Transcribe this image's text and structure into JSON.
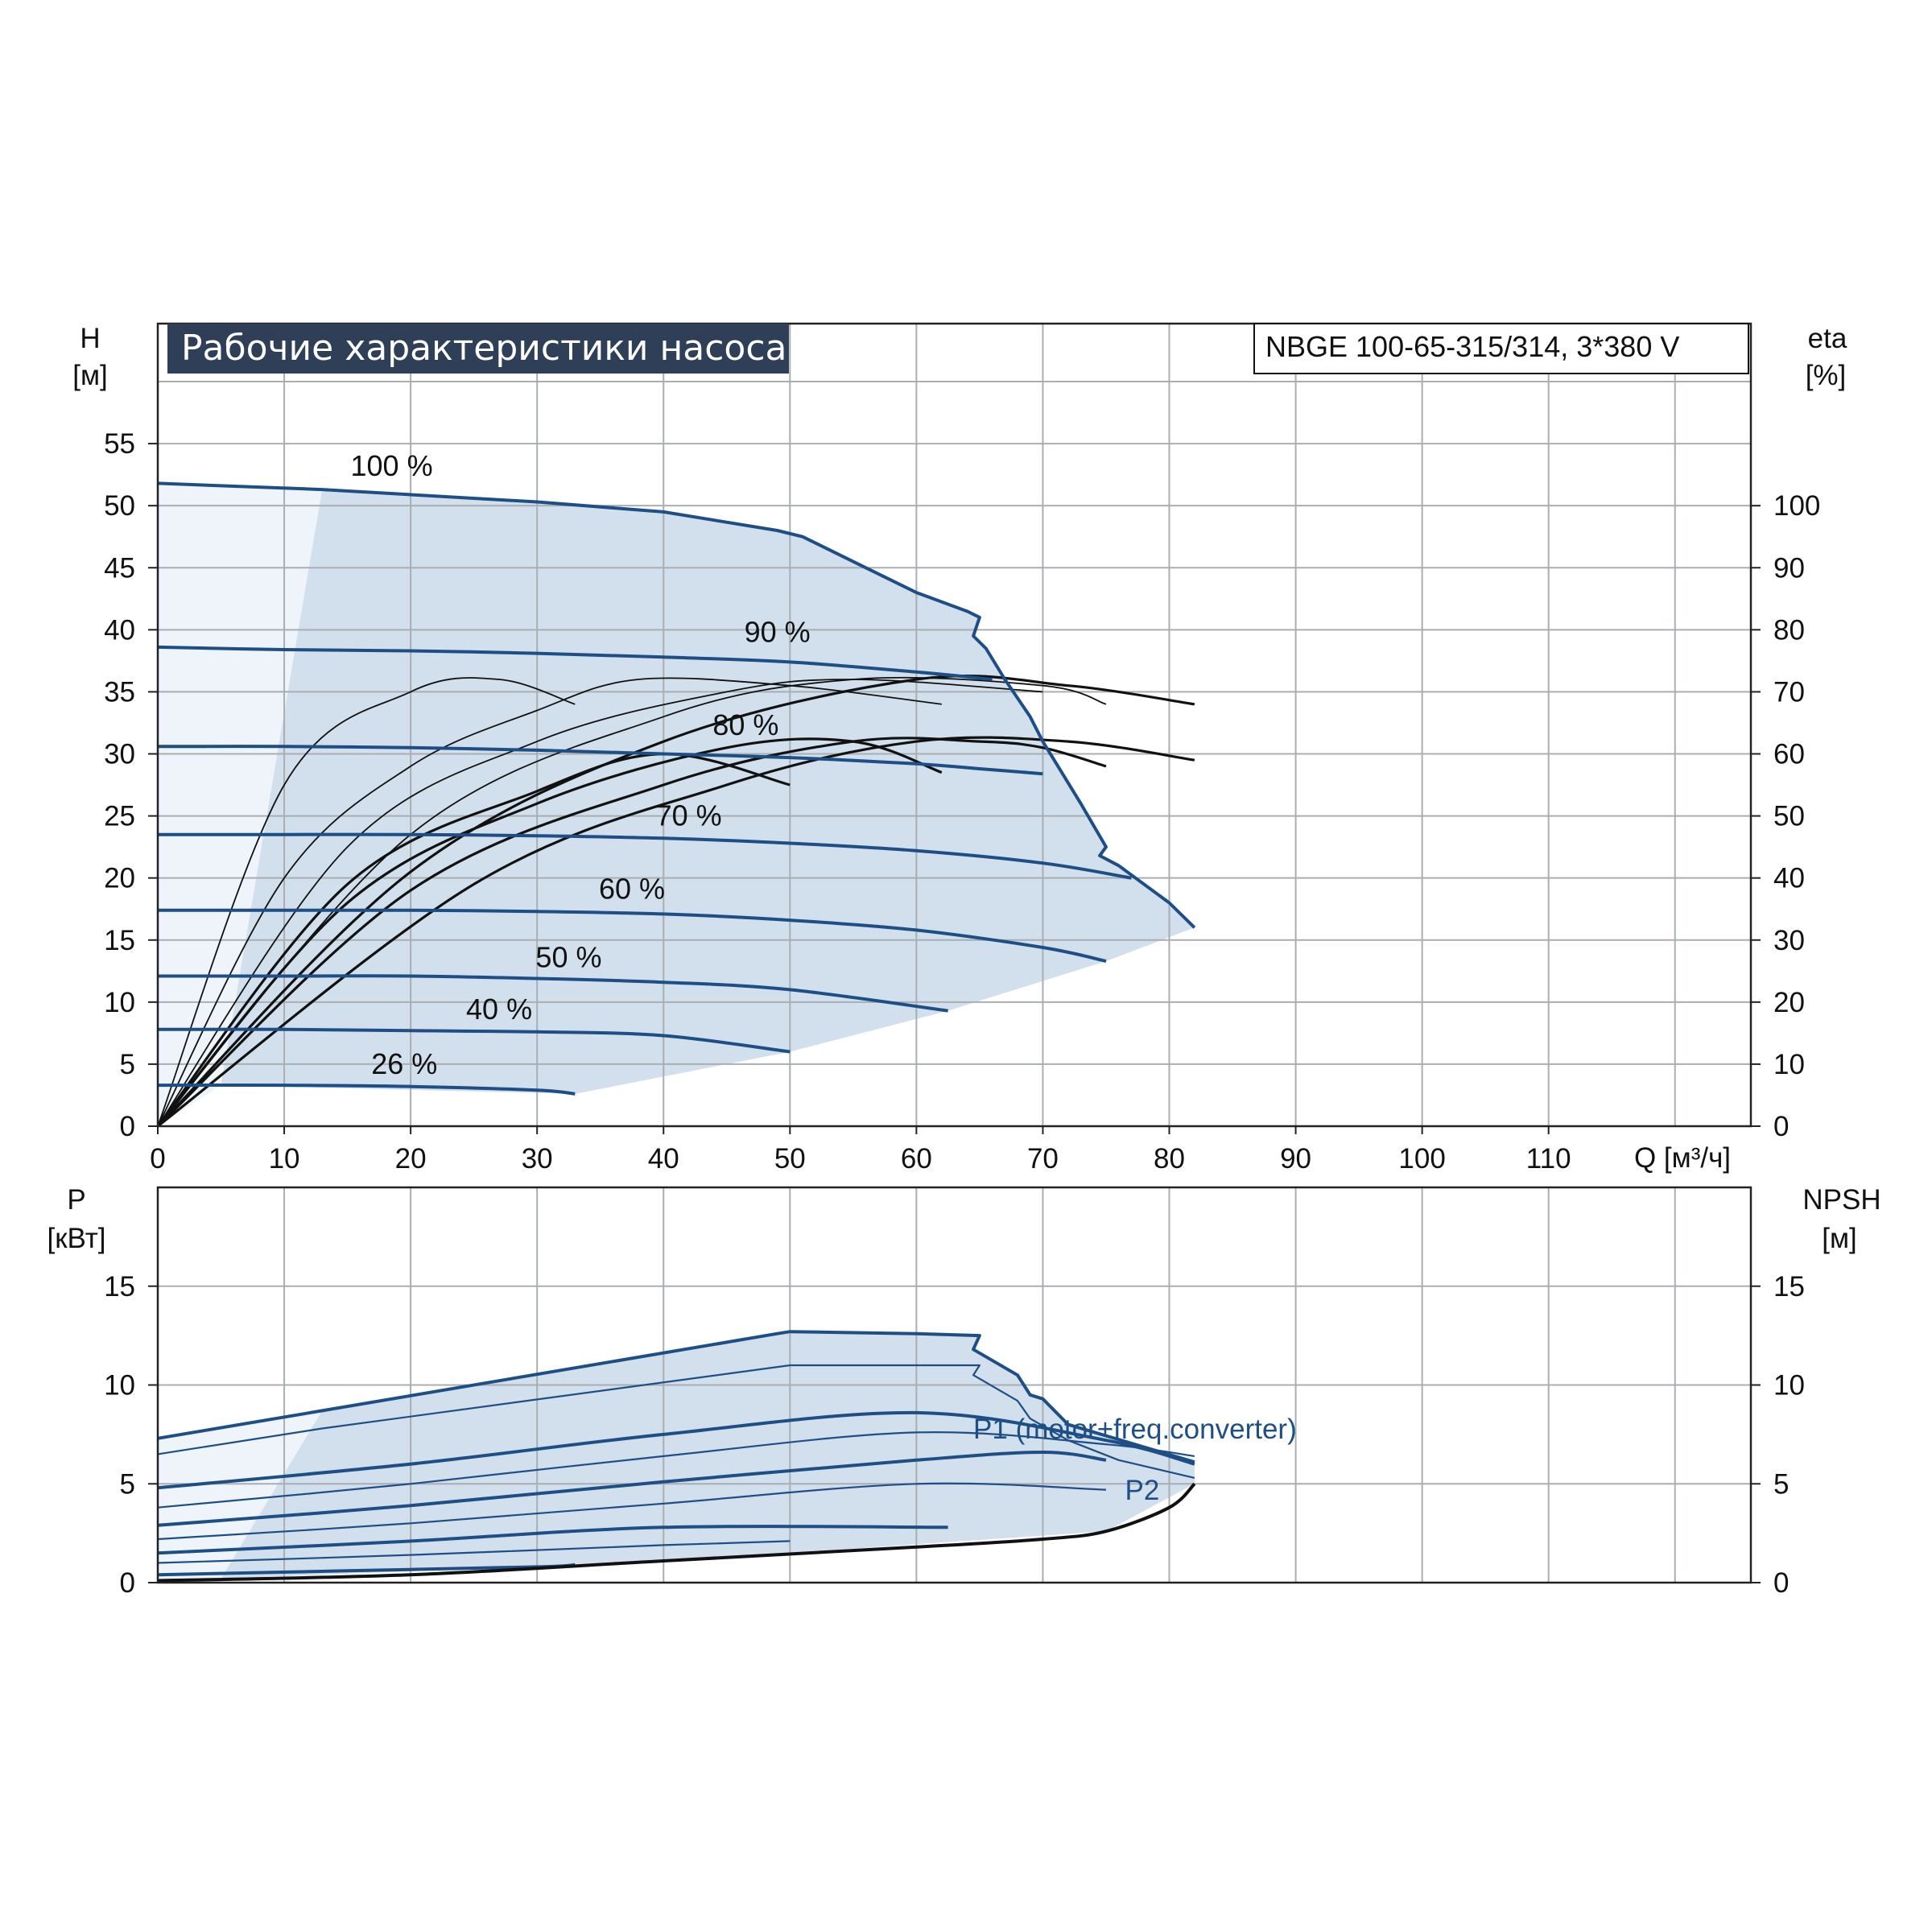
{
  "title": "Рабочие характеристики насоса",
  "model": "NBGE 100-65-315/314, 3*380 V",
  "colors": {
    "curve": "#1d4f86",
    "area": "#d2dfec",
    "area_light": "#eef4fa",
    "grid": "#a9aeb3",
    "title_bg": "#2e3f57",
    "eff": "#111111"
  },
  "chart_data": [
    {
      "type": "line",
      "title": "Рабочие характеристики насоса",
      "left_axis": {
        "label": "H",
        "unit": "[м]",
        "ticks": [
          "0",
          "5",
          "10",
          "15",
          "20",
          "25",
          "30",
          "35",
          "40",
          "45",
          "50",
          "55"
        ],
        "ylim": [
          0,
          60
        ]
      },
      "right_axis": {
        "label": "eta",
        "unit": "[%]",
        "ticks": [
          "0",
          "10",
          "20",
          "30",
          "40",
          "50",
          "60",
          "70",
          "80",
          "90",
          "100"
        ],
        "ylim": [
          0,
          120
        ]
      },
      "x_axis": {
        "label": "Q [м³/ч]",
        "ticks": [
          "0",
          "10",
          "20",
          "30",
          "40",
          "50",
          "60",
          "70",
          "80",
          "90",
          "100",
          "110"
        ],
        "xlim": [
          0,
          126
        ]
      },
      "grid": true,
      "series": [
        {
          "name": "100 %",
          "x": [
            0,
            13,
            30,
            40,
            49,
            51,
            56,
            60,
            64,
            65,
            64.5,
            65.5,
            67,
            69,
            70,
            73,
            75,
            74.5,
            76,
            80,
            82
          ],
          "y": [
            51.8,
            51.3,
            50.3,
            49.5,
            48,
            47.5,
            45,
            43,
            41.5,
            41,
            39.5,
            38.5,
            36,
            33,
            31,
            26,
            22.5,
            21.8,
            21,
            18,
            16
          ]
        },
        {
          "name": "90 %",
          "x": [
            0,
            10,
            20,
            30,
            40,
            50,
            60,
            66
          ],
          "y": [
            38.6,
            38.4,
            38.3,
            38.1,
            37.8,
            37.4,
            36.6,
            36
          ]
        },
        {
          "name": "80 %",
          "x": [
            0,
            10,
            20,
            30,
            40,
            50,
            60,
            65,
            70
          ],
          "y": [
            30.6,
            30.6,
            30.5,
            30.3,
            30,
            29.7,
            29.2,
            28.8,
            28.4
          ]
        },
        {
          "name": "70 %",
          "x": [
            0,
            10,
            20,
            30,
            40,
            50,
            60,
            70,
            77
          ],
          "y": [
            23.5,
            23.5,
            23.5,
            23.4,
            23.2,
            22.8,
            22.2,
            21.2,
            20
          ]
        },
        {
          "name": "60 %",
          "x": [
            0,
            10,
            20,
            30,
            40,
            50,
            60,
            70,
            75
          ],
          "y": [
            17.4,
            17.4,
            17.4,
            17.3,
            17.1,
            16.6,
            15.8,
            14.4,
            13.3
          ]
        },
        {
          "name": "50 %",
          "x": [
            0,
            10,
            20,
            30,
            40,
            50,
            62.5
          ],
          "y": [
            12.1,
            12.1,
            12.1,
            11.9,
            11.6,
            11,
            9.3
          ]
        },
        {
          "name": "40 %",
          "x": [
            0,
            10,
            20,
            30,
            40,
            50
          ],
          "y": [
            7.8,
            7.8,
            7.7,
            7.6,
            7.3,
            6
          ]
        },
        {
          "name": "26 %",
          "x": [
            0,
            10,
            20,
            30,
            33
          ],
          "y": [
            3.3,
            3.3,
            3.2,
            2.9,
            2.6
          ]
        }
      ],
      "efficiency_curves": [
        {
          "x": [
            0,
            10,
            20,
            27,
            33
          ],
          "y": [
            0,
            55,
            70,
            72,
            68
          ]
        },
        {
          "x": [
            0,
            10,
            20,
            30,
            38,
            50,
            62
          ],
          "y": [
            0,
            40,
            58,
            67,
            72,
            71,
            68
          ]
        },
        {
          "x": [
            0,
            15,
            30,
            45,
            55,
            70
          ],
          "y": [
            0,
            45,
            62,
            70,
            72,
            70
          ]
        },
        {
          "x": [
            0,
            20,
            40,
            55,
            70,
            75
          ],
          "y": [
            0,
            47,
            66,
            72,
            71,
            68
          ]
        },
        {
          "x": [
            0,
            20,
            40,
            60,
            72,
            82
          ],
          "y": [
            0,
            41,
            62,
            72,
            71,
            68
          ]
        },
        {
          "x": [
            0,
            15,
            30,
            40,
            50
          ],
          "y": [
            0,
            39,
            54,
            60,
            55
          ]
        },
        {
          "x": [
            0,
            15,
            30,
            45,
            55,
            62
          ],
          "y": [
            0,
            36,
            52,
            61,
            62,
            57
          ]
        },
        {
          "x": [
            0,
            20,
            40,
            55,
            65,
            70,
            75
          ],
          "y": [
            0,
            38,
            55,
            62,
            62,
            61,
            58
          ]
        },
        {
          "x": [
            0,
            25,
            45,
            60,
            72,
            82
          ],
          "y": [
            0,
            39,
            55,
            62,
            62,
            59
          ]
        }
      ],
      "annotations": [
        "100 %",
        "90 %",
        "80 %",
        "70 %",
        "60 %",
        "50 %",
        "40 %",
        "26 %"
      ]
    },
    {
      "type": "line",
      "left_axis": {
        "label": "P",
        "unit": "[кВт]",
        "ticks": [
          "0",
          "5",
          "10",
          "15"
        ],
        "ylim": [
          0,
          20
        ]
      },
      "right_axis": {
        "label": "NPSH",
        "unit": "[м]",
        "ticks": [
          "0",
          "5",
          "10",
          "15"
        ],
        "ylim": [
          0,
          20
        ]
      },
      "x_axis": {
        "xlim": [
          0,
          126
        ]
      },
      "grid": true,
      "series": [
        {
          "name": "P1 (motor+freq.converter)",
          "x": [
            0,
            13,
            49,
            50,
            60,
            65,
            64.5,
            68,
            69,
            70,
            72,
            82
          ],
          "y": [
            7.3,
            8.7,
            12.6,
            12.7,
            12.6,
            12.5,
            11.8,
            10.5,
            9.5,
            9.3,
            8,
            6.1
          ]
        },
        {
          "name": "P2",
          "x": [
            0,
            13,
            50,
            60,
            65,
            64.5,
            68,
            69,
            72,
            76,
            82
          ],
          "y": [
            6.5,
            7.8,
            11,
            11,
            11,
            10.5,
            9.2,
            8.3,
            7.2,
            6.2,
            5.3
          ]
        },
        {
          "x": [
            0,
            20,
            40,
            60,
            75,
            82
          ],
          "y": [
            4.8,
            6,
            7.5,
            8.6,
            7.2,
            6
          ]
        },
        {
          "x": [
            0,
            20,
            40,
            60,
            75,
            82
          ],
          "y": [
            3.8,
            5,
            6.4,
            7.6,
            7,
            6.4
          ]
        },
        {
          "x": [
            0,
            20,
            40,
            60,
            70,
            75
          ],
          "y": [
            2.9,
            3.9,
            5.1,
            6.2,
            6.6,
            6.2
          ]
        },
        {
          "x": [
            0,
            20,
            40,
            60,
            75
          ],
          "y": [
            2.2,
            3,
            4,
            5,
            4.7
          ]
        },
        {
          "x": [
            0,
            20,
            40,
            62.5
          ],
          "y": [
            1.5,
            2.1,
            2.8,
            2.8
          ]
        },
        {
          "x": [
            0,
            20,
            40,
            50
          ],
          "y": [
            1,
            1.4,
            1.9,
            2.1
          ]
        },
        {
          "x": [
            0,
            15,
            30,
            33
          ],
          "y": [
            0.4,
            0.6,
            0.8,
            0.9
          ]
        },
        {
          "x": [
            0,
            20,
            40,
            60,
            70,
            75,
            80,
            82
          ],
          "y": [
            0.1,
            0.4,
            1.1,
            1.8,
            2.2,
            2.6,
            3.8,
            5
          ]
        }
      ],
      "annotations": [
        "P1 (motor+freq.converter)",
        "P2"
      ]
    }
  ]
}
